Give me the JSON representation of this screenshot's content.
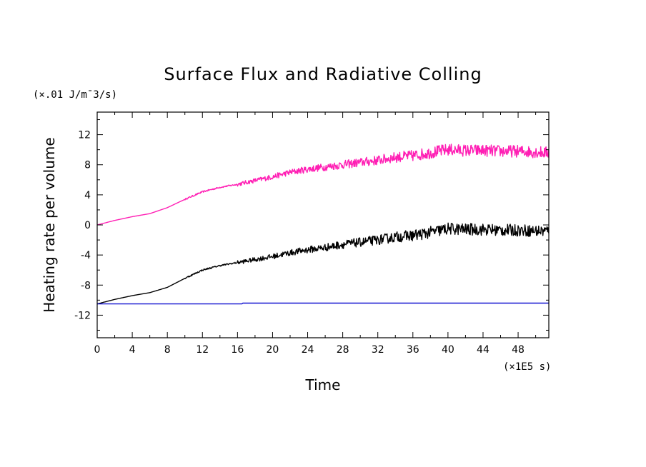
{
  "chart_data": {
    "type": "line",
    "title": "Surface Flux and Radiative Colling",
    "xlabel": "Time",
    "ylabel": "Heating rate per volume",
    "x_unit": "(×1E5 s)",
    "y_unit": "(×.01 J/m¯3/s)",
    "xlim": [
      0,
      51.5
    ],
    "ylim": [
      -15,
      15
    ],
    "x_ticks": [
      0,
      4,
      8,
      12,
      16,
      20,
      24,
      28,
      32,
      36,
      40,
      44,
      48
    ],
    "x_tick_labels": [
      "0",
      "4",
      "8",
      "12",
      "16",
      "20",
      "24",
      "28",
      "32",
      "36",
      "40",
      "44",
      "48"
    ],
    "y_ticks": [
      -12,
      -8,
      -4,
      0,
      4,
      8,
      12
    ],
    "y_tick_labels": [
      "-12",
      "-8",
      "-4",
      "0",
      "4",
      "8",
      "12"
    ],
    "grid": false,
    "series": [
      {
        "color": "#ff1fb4",
        "noisy_from_x": 16,
        "x": [
          0,
          1,
          2,
          4,
          6,
          8,
          10,
          12,
          14,
          16,
          18,
          20,
          22,
          24,
          26,
          28,
          30,
          32,
          34,
          36,
          38,
          40,
          42,
          44,
          46,
          48,
          50,
          51.5
        ],
        "y": [
          0.0,
          0.3,
          0.6,
          1.1,
          1.5,
          2.3,
          3.4,
          4.4,
          5.0,
          5.4,
          5.9,
          6.4,
          7.0,
          7.4,
          7.7,
          8.0,
          8.3,
          8.6,
          9.0,
          9.2,
          9.6,
          10.0,
          9.9,
          9.9,
          9.8,
          9.8,
          9.7,
          9.6
        ]
      },
      {
        "color": "#000000",
        "noisy_from_x": 16,
        "x": [
          0,
          1,
          2,
          4,
          6,
          8,
          10,
          12,
          14,
          16,
          18,
          20,
          22,
          24,
          26,
          28,
          30,
          32,
          34,
          36,
          38,
          40,
          42,
          44,
          46,
          48,
          50,
          51.5
        ],
        "y": [
          -10.5,
          -10.2,
          -9.9,
          -9.4,
          -9.0,
          -8.3,
          -7.1,
          -6.0,
          -5.4,
          -5.0,
          -4.6,
          -4.2,
          -3.7,
          -3.3,
          -3.0,
          -2.6,
          -2.3,
          -2.0,
          -1.6,
          -1.4,
          -1.0,
          -0.5,
          -0.6,
          -0.6,
          -0.7,
          -0.7,
          -0.8,
          -0.8
        ]
      },
      {
        "color": "#1010d0",
        "noisy_from_x": null,
        "x": [
          0,
          16.5,
          16.6,
          51.5
        ],
        "y": [
          -10.5,
          -10.5,
          -10.4,
          -10.4
        ]
      }
    ]
  }
}
